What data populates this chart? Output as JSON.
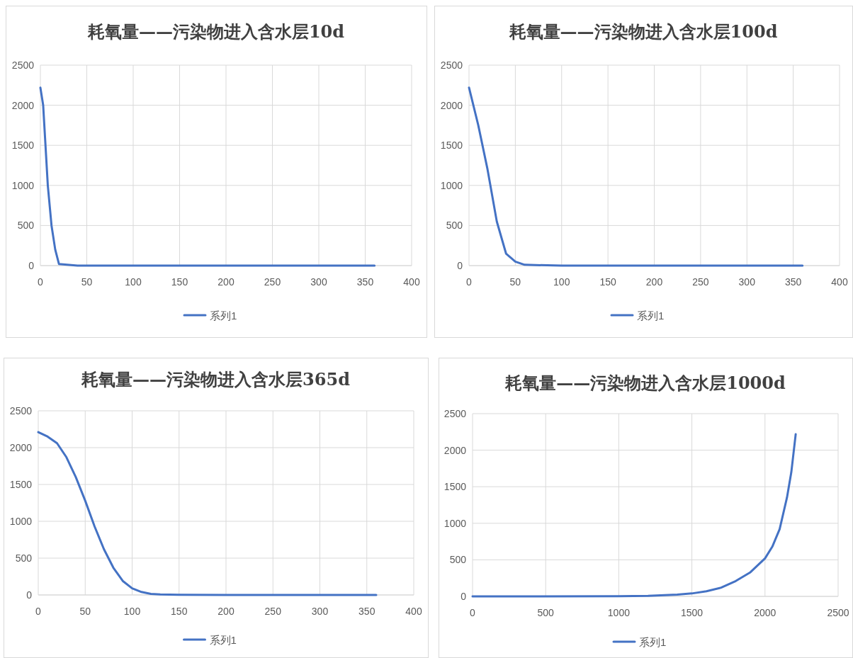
{
  "chart_data": [
    {
      "type": "line",
      "title": "耗氧量——污染物进入含水层10d",
      "x": [
        0,
        3,
        5,
        8,
        12,
        16,
        20,
        40,
        100,
        200,
        300,
        360
      ],
      "series": [
        {
          "name": "系列1",
          "color": "#4472c4",
          "values": [
            2220,
            2000,
            1600,
            1000,
            500,
            200,
            20,
            0,
            0,
            0,
            0,
            0
          ]
        }
      ],
      "xlim": [
        0,
        400
      ],
      "xticks": [
        0,
        50,
        100,
        150,
        200,
        250,
        300,
        350,
        400
      ],
      "ylim": [
        0,
        2500
      ],
      "yticks": [
        0,
        500,
        1000,
        1500,
        2000,
        2500
      ],
      "grid": true,
      "legend": "bottom"
    },
    {
      "type": "line",
      "title": "耗氧量——污染物进入含水层100d",
      "x": [
        0,
        10,
        20,
        30,
        40,
        50,
        60,
        100,
        200,
        300,
        360
      ],
      "series": [
        {
          "name": "系列1",
          "color": "#4472c4",
          "values": [
            2220,
            1750,
            1200,
            550,
            150,
            50,
            10,
            0,
            0,
            0,
            0
          ]
        }
      ],
      "xlim": [
        0,
        400
      ],
      "xticks": [
        0,
        50,
        100,
        150,
        200,
        250,
        300,
        350,
        400
      ],
      "ylim": [
        0,
        2500
      ],
      "yticks": [
        0,
        500,
        1000,
        1500,
        2000,
        2500
      ],
      "grid": true,
      "legend": "bottom"
    },
    {
      "type": "line",
      "title": "耗氧量——污染物进入含水层365d",
      "x": [
        0,
        10,
        20,
        30,
        40,
        50,
        60,
        70,
        80,
        90,
        100,
        110,
        120,
        130,
        150,
        200,
        300,
        360
      ],
      "series": [
        {
          "name": "系列1",
          "color": "#4472c4",
          "values": [
            2210,
            2150,
            2060,
            1870,
            1600,
            1280,
            930,
            620,
            370,
            190,
            90,
            40,
            15,
            8,
            3,
            0,
            0,
            0
          ]
        }
      ],
      "xlim": [
        0,
        400
      ],
      "xticks": [
        0,
        50,
        100,
        150,
        200,
        250,
        300,
        350,
        400
      ],
      "ylim": [
        0,
        2500
      ],
      "yticks": [
        0,
        500,
        1000,
        1500,
        2000,
        2500
      ],
      "grid": true,
      "legend": "bottom"
    },
    {
      "type": "line",
      "title": "耗氧量——污染物进入含水层1000d",
      "x": [
        0,
        1000,
        1200,
        1400,
        1500,
        1600,
        1700,
        1800,
        1900,
        2000,
        2050,
        2100,
        2150,
        2180,
        2210
      ],
      "series": [
        {
          "name": "系列1",
          "color": "#4472c4",
          "values": [
            0,
            2,
            8,
            25,
            40,
            70,
            120,
            210,
            330,
            520,
            680,
            920,
            1350,
            1700,
            2220
          ]
        }
      ],
      "xlim": [
        0,
        2500
      ],
      "xticks": [
        0,
        500,
        1000,
        1500,
        2000,
        2500
      ],
      "ylim": [
        0,
        2500
      ],
      "yticks": [
        0,
        500,
        1000,
        1500,
        2000,
        2500
      ],
      "grid": true,
      "legend": "bottom"
    }
  ]
}
